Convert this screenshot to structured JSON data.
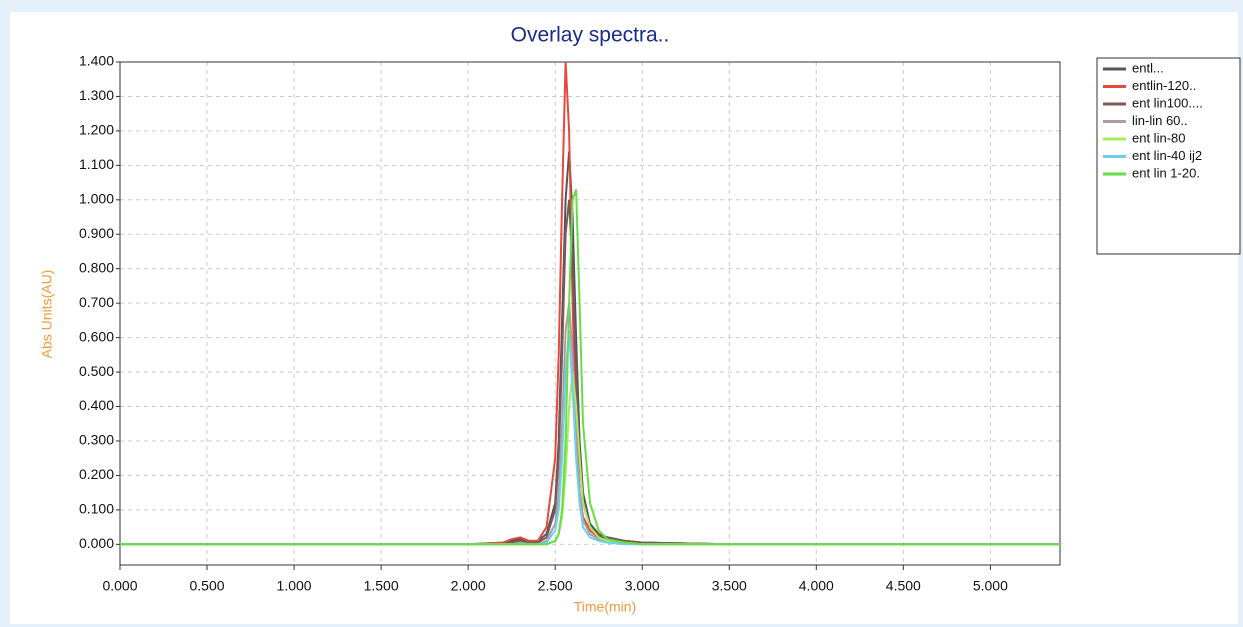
{
  "chart_data": {
    "type": "line",
    "title": "Overlay spectra..",
    "x_label": "Time(min)",
    "y_label": "Abs Units(AU)",
    "x": [
      0,
      2.0,
      2.2,
      2.25,
      2.3,
      2.35,
      2.4,
      2.45,
      2.5,
      2.52,
      2.54,
      2.56,
      2.58,
      2.6,
      2.62,
      2.64,
      2.66,
      2.7,
      2.75,
      2.8,
      2.9,
      3.0,
      3.5,
      5.4
    ],
    "series": [
      {
        "name": "entl...",
        "color": "#555555",
        "values": [
          0,
          0,
          0.005,
          0.01,
          0.015,
          0.01,
          0.01,
          0.03,
          0.12,
          0.3,
          0.65,
          1.0,
          1.14,
          0.95,
          0.6,
          0.3,
          0.15,
          0.06,
          0.03,
          0.02,
          0.01,
          0.005,
          0,
          0
        ]
      },
      {
        "name": "entlin-120..",
        "color": "#e8473b",
        "values": [
          0,
          0,
          0.005,
          0.015,
          0.02,
          0.01,
          0.01,
          0.05,
          0.25,
          0.55,
          1.0,
          1.4,
          1.2,
          0.7,
          0.35,
          0.15,
          0.08,
          0.04,
          0.02,
          0.015,
          0.01,
          0.005,
          0,
          0
        ]
      },
      {
        "name": "ent lin100....",
        "color": "#7a5a5f",
        "values": [
          0,
          0,
          0,
          0.005,
          0.01,
          0.005,
          0.005,
          0.02,
          0.1,
          0.25,
          0.55,
          0.9,
          1.0,
          0.8,
          0.5,
          0.25,
          0.12,
          0.05,
          0.025,
          0.015,
          0.01,
          0.005,
          0,
          0
        ]
      },
      {
        "name": "lin-lin 60..",
        "color": "#b39aa0",
        "values": [
          0,
          0,
          0,
          0,
          0.005,
          0,
          0,
          0.01,
          0.06,
          0.15,
          0.35,
          0.62,
          0.7,
          0.55,
          0.3,
          0.15,
          0.07,
          0.03,
          0.015,
          0.01,
          0.005,
          0,
          0,
          0
        ]
      },
      {
        "name": "ent lin-80",
        "color": "#a6ec5e",
        "values": [
          0,
          0,
          0,
          0,
          0,
          0,
          0,
          0,
          0.01,
          0.03,
          0.08,
          0.2,
          0.4,
          0.5,
          0.4,
          0.25,
          0.12,
          0.05,
          0.02,
          0.01,
          0.005,
          0,
          0,
          0
        ]
      },
      {
        "name": "ent lin-40 ij2",
        "color": "#6ccff0",
        "values": [
          0,
          0,
          0,
          0,
          0,
          0,
          0,
          0.005,
          0.04,
          0.1,
          0.25,
          0.5,
          0.62,
          0.45,
          0.25,
          0.12,
          0.05,
          0.02,
          0.01,
          0.005,
          0,
          0,
          0,
          0
        ]
      },
      {
        "name": "ent lin 1-20.",
        "color": "#66dd44",
        "values": [
          0,
          0,
          0,
          0,
          0,
          0,
          0,
          0,
          0.01,
          0.03,
          0.1,
          0.3,
          0.7,
          1.0,
          1.03,
          0.7,
          0.35,
          0.12,
          0.04,
          0.015,
          0.005,
          0,
          0,
          0
        ]
      }
    ],
    "xlim": [
      0,
      5.4
    ],
    "xticks": [
      {
        "value": 0,
        "label": "0.000"
      },
      {
        "value": 0.5,
        "label": "0.500"
      },
      {
        "value": 1,
        "label": "1.000"
      },
      {
        "value": 1.5,
        "label": "1.500"
      },
      {
        "value": 2,
        "label": "2.000"
      },
      {
        "value": 2.5,
        "label": "2.500"
      },
      {
        "value": 3,
        "label": "3.000"
      },
      {
        "value": 3.5,
        "label": "3.500"
      },
      {
        "value": 4,
        "label": "4.000"
      },
      {
        "value": 4.5,
        "label": "4.500"
      },
      {
        "value": 5,
        "label": "5.000"
      }
    ],
    "ylim": [
      -0.06,
      1.4
    ],
    "yticks": [
      {
        "value": 0,
        "label": "0.000"
      },
      {
        "value": 0.1,
        "label": "0.100"
      },
      {
        "value": 0.2,
        "label": "0.200"
      },
      {
        "value": 0.3,
        "label": "0.300"
      },
      {
        "value": 0.4,
        "label": "0.400"
      },
      {
        "value": 0.5,
        "label": "0.500"
      },
      {
        "value": 0.6,
        "label": "0.600"
      },
      {
        "value": 0.7,
        "label": "0.700"
      },
      {
        "value": 0.8,
        "label": "0.800"
      },
      {
        "value": 0.9,
        "label": "0.900"
      },
      {
        "value": 1,
        "label": "1.000"
      },
      {
        "value": 1.1,
        "label": "1.100"
      },
      {
        "value": 1.2,
        "label": "1.200"
      },
      {
        "value": 1.3,
        "label": "1.300"
      },
      {
        "value": 1.4,
        "label": "1.400"
      }
    ],
    "grid": true
  }
}
